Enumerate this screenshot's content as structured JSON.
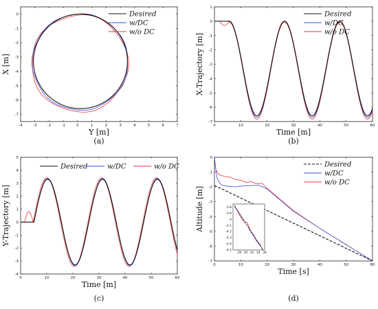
{
  "colors": {
    "desired": "#111111",
    "with_dc": "#3b4fd8",
    "without_dc": "#ee3333",
    "axis": "#222222"
  },
  "chart_data": [
    {
      "id": "a",
      "type": "line",
      "caption": "a",
      "xlabel": "Y [m]",
      "ylabel": "X [m]",
      "xlim": [
        -4,
        7
      ],
      "ylim": [
        -7.5,
        0.5
      ],
      "xticks": [
        -4,
        -3,
        -2,
        -1,
        0,
        1,
        2,
        3,
        4,
        5,
        6,
        7
      ],
      "yticks": [
        0,
        -1,
        -2,
        -3,
        -4,
        -5,
        -6,
        -7
      ],
      "legend": {
        "position": "top-right",
        "entries": [
          "Desired",
          "w/DC",
          "w/o DC"
        ]
      },
      "series": [
        {
          "name": "Desired",
          "kind": "circle",
          "center": [
            0.2,
            -3.3
          ],
          "radius": 3.3
        },
        {
          "name": "w/DC",
          "kind": "circle",
          "center": [
            0.18,
            -3.35
          ],
          "radius": 3.36
        },
        {
          "name": "w/o DC",
          "kind": "circle",
          "center": [
            0.15,
            -3.45
          ],
          "radius": 3.38
        }
      ]
    },
    {
      "id": "b",
      "type": "line",
      "caption": "b",
      "xlabel": "Time [m]",
      "ylabel": "X-Trajectory [m]",
      "xlim": [
        0,
        60
      ],
      "ylim": [
        -7,
        1
      ],
      "xticks": [
        0,
        10,
        20,
        30,
        40,
        50,
        60
      ],
      "yticks": [
        1,
        0,
        -1,
        -2,
        -3,
        -4,
        -5,
        -6,
        -7
      ],
      "legend": {
        "position": "top-right",
        "entries": [
          "Desired",
          "w/DC",
          "w/o DC"
        ]
      },
      "series": [
        {
          "name": "Desired",
          "start": 5.6,
          "period": 21,
          "offset": -3.3,
          "amplitude": 3.3,
          "hold": 0
        },
        {
          "name": "w/DC",
          "start": 5.6,
          "period": 21,
          "offset": -3.35,
          "amplitude": 3.36,
          "hold": 0
        },
        {
          "name": "w/o DC",
          "start": 5.6,
          "period": 21,
          "offset": -3.45,
          "amplitude": 3.38,
          "hold": 0
        }
      ]
    },
    {
      "id": "c",
      "type": "line",
      "caption": "c",
      "xlabel": "Time [m]",
      "ylabel": "Y-Trajectory [m]",
      "xlim": [
        0,
        60
      ],
      "ylim": [
        -4,
        5
      ],
      "xticks": [
        0,
        10,
        20,
        30,
        40,
        50,
        60
      ],
      "yticks": [
        5,
        4,
        3,
        2,
        1,
        0,
        -1,
        -2,
        -3,
        -4
      ],
      "legend": {
        "position": "top",
        "entries": [
          "Desired",
          "w/DC",
          "w/o DC"
        ]
      },
      "series": [
        {
          "name": "Desired",
          "start": 5.1,
          "period": 21,
          "amplitude": 3.3,
          "hold": 0
        },
        {
          "name": "w/DC",
          "start": 5.1,
          "period": 21,
          "amplitude": 3.36,
          "hold": 0
        },
        {
          "name": "w/o DC",
          "start": 4.8,
          "period": 21,
          "amplitude": 3.42,
          "hold": 0
        }
      ]
    },
    {
      "id": "d",
      "type": "line",
      "caption": "d",
      "xlabel": "Time [s]",
      "ylabel": "Altitude [m]",
      "xlim": [
        0,
        60
      ],
      "ylim": [
        -7,
        0
      ],
      "xticks": [
        0,
        10,
        20,
        30,
        40,
        50,
        60
      ],
      "yticks": [
        0,
        -1,
        -2,
        -3,
        -4,
        -5,
        -6,
        -7
      ],
      "legend": {
        "position": "top-right",
        "entries": [
          "Desired",
          "w/DC",
          "w/o DC"
        ]
      },
      "series": [
        {
          "name": "Desired",
          "x": [
            0,
            60
          ],
          "y": [
            -1.9,
            -7.0
          ]
        },
        {
          "name": "w/DC",
          "x": [
            0,
            0.3,
            1,
            2,
            3,
            5,
            8,
            10,
            15,
            17,
            20,
            30,
            40,
            50,
            60
          ],
          "y": [
            0,
            -0.5,
            -1.4,
            -1.75,
            -1.9,
            -1.95,
            -2.0,
            -1.95,
            -1.9,
            -1.9,
            -2.15,
            -3.65,
            -4.8,
            -5.9,
            -7.0
          ]
        },
        {
          "name": "w/o DC",
          "x": [
            0,
            0.5,
            1,
            2,
            4,
            6,
            8,
            10,
            12,
            14,
            16,
            18,
            20,
            30,
            40,
            50,
            60
          ],
          "y": [
            0,
            -0.8,
            -1.0,
            -1.2,
            -1.3,
            -1.35,
            -1.5,
            -1.55,
            -1.7,
            -1.65,
            -1.8,
            -1.75,
            -2.1,
            -3.6,
            -4.8,
            -5.9,
            -7.0
          ]
        }
      ],
      "inset": {
        "xlim": [
          26,
          36
        ],
        "ylim": [
          -4.5,
          -3.75
        ],
        "xticks": [
          28,
          30,
          32,
          34,
          36
        ],
        "yticks": [
          -3.8,
          -3.9,
          -4,
          -4.1,
          -4.2,
          -4.3,
          -4.4,
          -4.5
        ],
        "series": [
          {
            "name": "Desired",
            "x": [
              26.5,
              35.5
            ],
            "y": [
              -3.78,
              -4.5
            ]
          },
          {
            "name": "w/DC",
            "x": [
              26.5,
              27.5,
              28.5,
              29.5,
              30.5,
              31.5,
              32.5,
              33.5,
              34.5,
              35.5
            ],
            "y": [
              -3.8,
              -3.86,
              -3.95,
              -4.02,
              -4.1,
              -4.2,
              -4.27,
              -4.36,
              -4.42,
              -4.5
            ]
          },
          {
            "name": "w/o DC",
            "x": [
              26.5,
              27.5,
              28.5,
              29.5,
              30.5,
              31.5,
              32.5,
              33.5,
              34.5,
              35.5
            ],
            "y": [
              -3.77,
              -3.88,
              -3.97,
              -4.05,
              -4.05,
              -4.18,
              -4.25,
              -4.35,
              -4.4,
              -4.52
            ]
          }
        ]
      }
    }
  ]
}
